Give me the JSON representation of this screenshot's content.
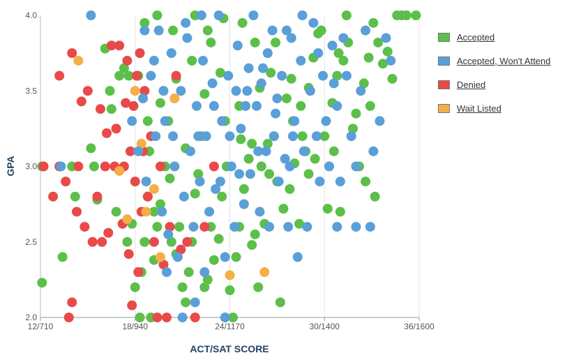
{
  "chart_data": {
    "type": "scatter",
    "title": "",
    "xlabel": "ACT/SAT SCORE",
    "ylabel": "GPA",
    "x_ticks": [
      "12/710",
      "18/940",
      "24/1170",
      "30/1400",
      "36/1600"
    ],
    "x_tick_values": [
      12,
      18,
      24,
      30,
      36
    ],
    "y_ticks": [
      "2.0",
      "2.5",
      "3.0",
      "3.5",
      "4.0"
    ],
    "xlim": [
      12,
      36
    ],
    "ylim": [
      2.0,
      4.0
    ],
    "x_unit": "ACT score (SAT equivalent shown in tick labels)",
    "grid": "vertical",
    "legend_position": "right",
    "series": [
      {
        "name": "Accepted",
        "color": "#5cbf4a",
        "points": [
          [
            12.1,
            3.0
          ],
          [
            12.1,
            2.23
          ],
          [
            13.4,
            2.4
          ],
          [
            14.2,
            2.8
          ],
          [
            14.0,
            3.0
          ],
          [
            15.2,
            3.12
          ],
          [
            15.6,
            2.78
          ],
          [
            16.1,
            3.78
          ],
          [
            16.4,
            3.5
          ],
          [
            16.5,
            3.38
          ],
          [
            17.0,
            3.6
          ],
          [
            17.3,
            3.65
          ],
          [
            17.5,
            2.5
          ],
          [
            17.8,
            2.62
          ],
          [
            18.0,
            2.2
          ],
          [
            18.3,
            2.0
          ],
          [
            18.4,
            2.3
          ],
          [
            18.6,
            2.5
          ],
          [
            18.8,
            2.8
          ],
          [
            18.9,
            3.1
          ],
          [
            19.0,
            2.0
          ],
          [
            19.2,
            2.38
          ],
          [
            19.4,
            2.6
          ],
          [
            19.6,
            2.75
          ],
          [
            19.9,
            3.0
          ],
          [
            20.1,
            3.3
          ],
          [
            20.3,
            2.5
          ],
          [
            20.6,
            2.42
          ],
          [
            20.8,
            2.6
          ],
          [
            21.0,
            2.2
          ],
          [
            21.2,
            2.1
          ],
          [
            21.4,
            2.3
          ],
          [
            21.6,
            2.5
          ],
          [
            21.8,
            2.82
          ],
          [
            22.0,
            2.95
          ],
          [
            22.2,
            3.2
          ],
          [
            22.4,
            2.2
          ],
          [
            22.6,
            2.25
          ],
          [
            22.8,
            2.6
          ],
          [
            23.0,
            2.38
          ],
          [
            23.3,
            2.52
          ],
          [
            23.5,
            2.8
          ],
          [
            23.8,
            3.0
          ],
          [
            24.0,
            2.18
          ],
          [
            24.2,
            2.0
          ],
          [
            24.4,
            2.4
          ],
          [
            24.6,
            2.6
          ],
          [
            24.9,
            2.85
          ],
          [
            25.2,
            3.05
          ],
          [
            25.4,
            2.48
          ],
          [
            25.6,
            2.55
          ],
          [
            25.8,
            2.2
          ],
          [
            26.2,
            2.62
          ],
          [
            26.5,
            2.95
          ],
          [
            26.8,
            3.2
          ],
          [
            27.2,
            2.1
          ],
          [
            27.4,
            2.72
          ],
          [
            27.8,
            2.85
          ],
          [
            28.1,
            3.02
          ],
          [
            28.4,
            2.62
          ],
          [
            28.8,
            3.1
          ],
          [
            29.0,
            3.52
          ],
          [
            29.3,
            3.72
          ],
          [
            29.6,
            3.88
          ],
          [
            30.0,
            3.2
          ],
          [
            30.2,
            2.72
          ],
          [
            30.5,
            3.42
          ],
          [
            30.8,
            3.6
          ],
          [
            31.2,
            3.7
          ],
          [
            31.5,
            3.82
          ],
          [
            31.8,
            3.25
          ],
          [
            32.2,
            3.0
          ],
          [
            32.5,
            3.55
          ],
          [
            32.8,
            3.72
          ],
          [
            33.1,
            3.95
          ],
          [
            33.4,
            3.82
          ],
          [
            33.7,
            3.68
          ],
          [
            34.0,
            3.76
          ],
          [
            34.3,
            3.58
          ],
          [
            34.6,
            4.0
          ],
          [
            34.9,
            4.0
          ],
          [
            35.2,
            4.0
          ],
          [
            35.8,
            4.0
          ],
          [
            33.2,
            2.8
          ],
          [
            32.6,
            2.9
          ],
          [
            31.0,
            2.7
          ],
          [
            29.4,
            3.05
          ],
          [
            28.6,
            3.2
          ],
          [
            27.6,
            3.45
          ],
          [
            26.6,
            3.62
          ],
          [
            25.6,
            3.82
          ],
          [
            24.8,
            3.95
          ],
          [
            23.6,
            3.98
          ],
          [
            22.6,
            3.9
          ],
          [
            21.6,
            3.7
          ],
          [
            20.6,
            3.58
          ],
          [
            19.6,
            3.42
          ],
          [
            18.8,
            3.3
          ],
          [
            19.4,
            4.0
          ],
          [
            18.6,
            3.95
          ],
          [
            18.2,
            3.6
          ],
          [
            20.4,
            3.9
          ],
          [
            21.8,
            4.0
          ],
          [
            22.8,
            3.82
          ],
          [
            23.4,
            3.62
          ],
          [
            24.6,
            3.4
          ],
          [
            25.4,
            3.15
          ],
          [
            26.0,
            3.0
          ],
          [
            27.0,
            2.9
          ],
          [
            28.0,
            3.3
          ],
          [
            29.8,
            3.9
          ],
          [
            31.4,
            4.0
          ],
          [
            32.0,
            3.35
          ],
          [
            30.6,
            3.1
          ],
          [
            29.0,
            2.95
          ],
          [
            27.9,
            3.58
          ],
          [
            26.9,
            3.82
          ],
          [
            25.9,
            3.52
          ],
          [
            24.7,
            3.18
          ],
          [
            23.7,
            3.3
          ],
          [
            22.4,
            3.48
          ],
          [
            21.2,
            3.12
          ],
          [
            20.2,
            2.92
          ],
          [
            19.2,
            2.7
          ],
          [
            26.4,
            3.15
          ],
          [
            28.5,
            3.4
          ],
          [
            30.9,
            3.75
          ],
          [
            32.9,
            3.4
          ],
          [
            17.6,
            3.6
          ],
          [
            16.8,
            2.7
          ],
          [
            15.4,
            3.0
          ]
        ]
      },
      {
        "name": "Accepted, Won't Attend",
        "color": "#5a9fd8",
        "points": [
          [
            13.3,
            3.0
          ],
          [
            15.2,
            4.0
          ],
          [
            17.8,
            3.3
          ],
          [
            18.2,
            3.1
          ],
          [
            18.5,
            3.45
          ],
          [
            18.7,
            2.9
          ],
          [
            19.0,
            3.6
          ],
          [
            19.3,
            3.2
          ],
          [
            19.5,
            3.9
          ],
          [
            19.7,
            2.7
          ],
          [
            19.9,
            3.3
          ],
          [
            20.1,
            2.55
          ],
          [
            20.3,
            3.75
          ],
          [
            20.5,
            3.0
          ],
          [
            20.7,
            2.4
          ],
          [
            20.9,
            3.5
          ],
          [
            21.1,
            2.8
          ],
          [
            21.3,
            3.85
          ],
          [
            21.5,
            3.1
          ],
          [
            21.7,
            2.6
          ],
          [
            21.9,
            3.4
          ],
          [
            22.1,
            2.9
          ],
          [
            22.3,
            3.7
          ],
          [
            22.5,
            3.2
          ],
          [
            22.7,
            2.7
          ],
          [
            22.9,
            3.55
          ],
          [
            23.1,
            2.85
          ],
          [
            23.3,
            4.0
          ],
          [
            23.5,
            3.3
          ],
          [
            23.7,
            2.4
          ],
          [
            23.9,
            3.6
          ],
          [
            24.1,
            3.0
          ],
          [
            24.3,
            2.6
          ],
          [
            24.5,
            3.8
          ],
          [
            24.7,
            3.25
          ],
          [
            24.9,
            2.75
          ],
          [
            25.1,
            3.5
          ],
          [
            25.3,
            2.95
          ],
          [
            25.5,
            4.0
          ],
          [
            25.7,
            3.4
          ],
          [
            25.9,
            2.7
          ],
          [
            26.1,
            3.65
          ],
          [
            26.3,
            3.1
          ],
          [
            26.5,
            2.6
          ],
          [
            26.7,
            3.9
          ],
          [
            26.9,
            3.35
          ],
          [
            27.1,
            2.9
          ],
          [
            27.3,
            3.6
          ],
          [
            27.5,
            3.05
          ],
          [
            27.7,
            2.6
          ],
          [
            27.9,
            3.85
          ],
          [
            28.1,
            3.3
          ],
          [
            28.3,
            2.4
          ],
          [
            28.5,
            3.7
          ],
          [
            28.7,
            3.1
          ],
          [
            28.9,
            2.6
          ],
          [
            29.1,
            3.5
          ],
          [
            29.3,
            3.95
          ],
          [
            29.5,
            3.2
          ],
          [
            29.7,
            2.9
          ],
          [
            29.9,
            3.6
          ],
          [
            30.1,
            3.3
          ],
          [
            30.3,
            3.0
          ],
          [
            30.5,
            3.8
          ],
          [
            30.8,
            3.4
          ],
          [
            31.0,
            2.9
          ],
          [
            31.4,
            3.6
          ],
          [
            31.7,
            3.2
          ],
          [
            32.0,
            2.6
          ],
          [
            32.3,
            3.5
          ],
          [
            32.6,
            3.9
          ],
          [
            32.9,
            2.6
          ],
          [
            33.1,
            3.1
          ],
          [
            33.5,
            3.3
          ],
          [
            33.9,
            3.85
          ],
          [
            34.2,
            3.7
          ],
          [
            32.0,
            3.0
          ],
          [
            30.8,
            2.6
          ],
          [
            21.0,
            2.0
          ],
          [
            23.7,
            2.0
          ],
          [
            22.4,
            2.3
          ],
          [
            20.0,
            2.3
          ],
          [
            21.8,
            2.1
          ],
          [
            19.2,
            3.7
          ],
          [
            18.6,
            3.9
          ],
          [
            24.0,
            3.2
          ],
          [
            25.0,
            3.4
          ],
          [
            26.0,
            3.55
          ],
          [
            27.0,
            3.45
          ],
          [
            28.0,
            3.2
          ],
          [
            22.0,
            3.2
          ],
          [
            23.0,
            3.4
          ],
          [
            24.4,
            3.5
          ],
          [
            25.2,
            3.65
          ],
          [
            26.4,
            3.75
          ],
          [
            27.6,
            3.9
          ],
          [
            28.6,
            4.0
          ],
          [
            29.6,
            3.75
          ],
          [
            30.6,
            3.55
          ],
          [
            31.2,
            3.85
          ],
          [
            22.2,
            4.0
          ],
          [
            21.2,
            3.95
          ],
          [
            20.4,
            3.2
          ],
          [
            19.8,
            3.5
          ],
          [
            23.4,
            2.9
          ],
          [
            24.6,
            2.95
          ],
          [
            25.8,
            3.1
          ],
          [
            26.8,
            3.2
          ],
          [
            27.8,
            3.0
          ]
        ]
      },
      {
        "name": "Denied",
        "color": "#e84a4a",
        "points": [
          [
            12.2,
            3.0
          ],
          [
            12.8,
            2.8
          ],
          [
            13.2,
            3.6
          ],
          [
            13.6,
            2.9
          ],
          [
            14.0,
            3.75
          ],
          [
            13.8,
            2.0
          ],
          [
            14.0,
            2.1
          ],
          [
            14.3,
            2.7
          ],
          [
            14.4,
            3.0
          ],
          [
            14.6,
            3.43
          ],
          [
            14.8,
            2.6
          ],
          [
            15.0,
            3.5
          ],
          [
            15.3,
            2.5
          ],
          [
            15.6,
            2.8
          ],
          [
            15.9,
            2.5
          ],
          [
            16.1,
            3.0
          ],
          [
            16.3,
            2.56
          ],
          [
            16.5,
            3.8
          ],
          [
            16.7,
            3.0
          ],
          [
            16.8,
            3.25
          ],
          [
            17.0,
            3.8
          ],
          [
            17.2,
            2.62
          ],
          [
            17.3,
            3.0
          ],
          [
            17.5,
            3.7
          ],
          [
            17.6,
            2.42
          ],
          [
            17.7,
            3.1
          ],
          [
            17.8,
            2.08
          ],
          [
            17.9,
            3.4
          ],
          [
            18.0,
            2.9
          ],
          [
            18.1,
            3.6
          ],
          [
            18.2,
            2.3
          ],
          [
            18.3,
            3.75
          ],
          [
            18.4,
            2.7
          ],
          [
            18.6,
            3.5
          ],
          [
            18.8,
            2.8
          ],
          [
            19.0,
            3.2
          ],
          [
            19.2,
            2.5
          ],
          [
            19.4,
            2.0
          ],
          [
            19.6,
            3.0
          ],
          [
            19.8,
            2.35
          ],
          [
            20.0,
            2.0
          ],
          [
            20.2,
            2.6
          ],
          [
            20.6,
            3.6
          ],
          [
            20.9,
            2.45
          ],
          [
            21.3,
            2.5
          ],
          [
            21.8,
            2.0
          ],
          [
            22.4,
            2.6
          ],
          [
            23.0,
            3.0
          ],
          [
            13.2,
            3.0
          ],
          [
            15.8,
            3.38
          ],
          [
            16.2,
            3.22
          ],
          [
            17.4,
            3.42
          ],
          [
            18.5,
            3.1
          ]
        ]
      },
      {
        "name": "Wait Listed",
        "color": "#f5ae48",
        "points": [
          [
            14.4,
            3.7
          ],
          [
            17.0,
            2.97
          ],
          [
            17.5,
            2.65
          ],
          [
            18.0,
            3.5
          ],
          [
            18.4,
            3.15
          ],
          [
            18.7,
            2.7
          ],
          [
            19.2,
            2.85
          ],
          [
            19.6,
            2.4
          ],
          [
            20.5,
            3.45
          ],
          [
            24.0,
            2.28
          ],
          [
            26.2,
            2.3
          ]
        ]
      }
    ]
  }
}
